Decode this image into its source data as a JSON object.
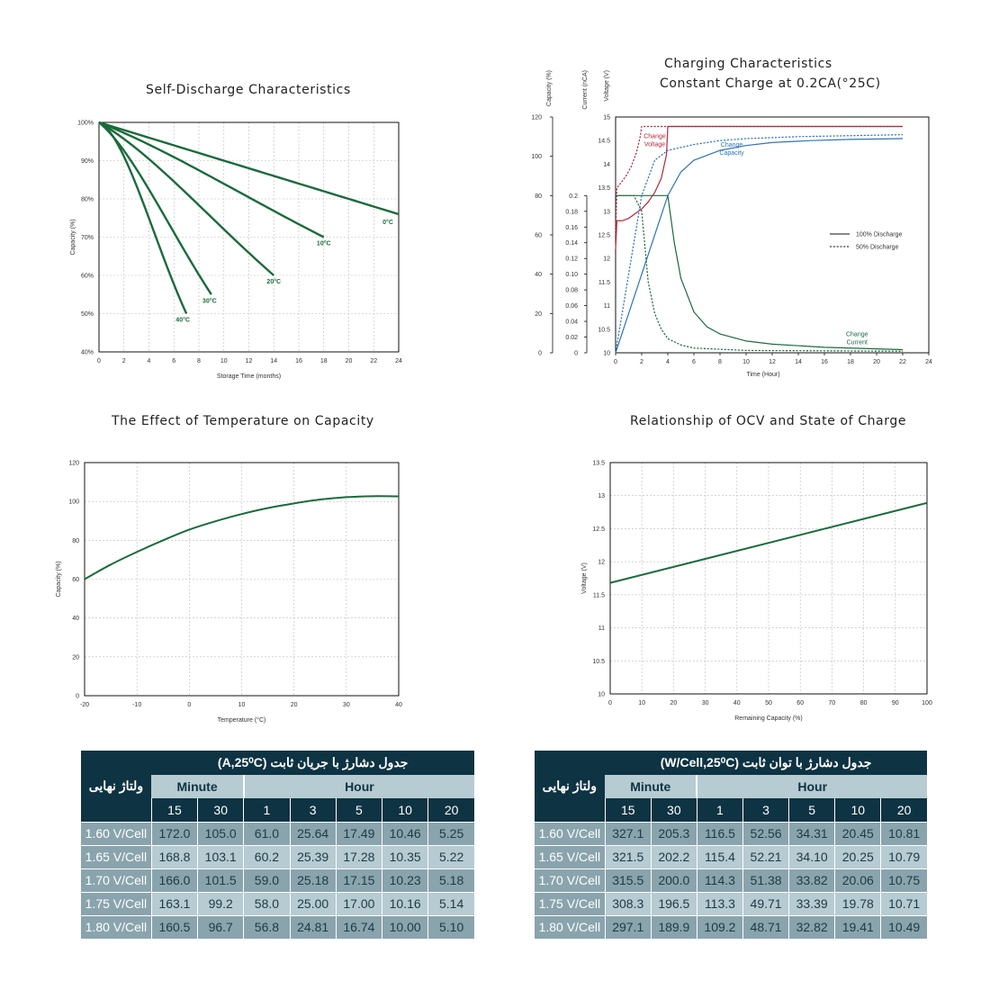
{
  "chart_data": [
    {
      "type": "line",
      "title": "Self-Discharge Characteristics",
      "xlabel": "Storage Time (months)",
      "ylabel": "Capacity (%)",
      "xlim": [
        0,
        24
      ],
      "ylim": [
        40,
        100
      ],
      "xticks": [
        0,
        2,
        4,
        6,
        8,
        10,
        12,
        14,
        16,
        18,
        20,
        22,
        24
      ],
      "yticks": [
        "40%",
        "50%",
        "60%",
        "70%",
        "80%",
        "90%",
        "100%"
      ],
      "ytick_values": [
        40,
        50,
        60,
        70,
        80,
        90,
        100
      ],
      "grid": true,
      "color": "#1a6b3c",
      "series": [
        {
          "name": "0°C",
          "x": [
            0,
            24
          ],
          "y": [
            100,
            76
          ],
          "curve": 0
        },
        {
          "name": "10°C",
          "x": [
            0,
            18
          ],
          "y": [
            100,
            70
          ],
          "curve": 0.04
        },
        {
          "name": "20°C",
          "x": [
            0,
            14
          ],
          "y": [
            100,
            60
          ],
          "curve": 0.06
        },
        {
          "name": "30°C",
          "x": [
            0,
            9
          ],
          "y": [
            100,
            55
          ],
          "curve": 0.08
        },
        {
          "name": "40°C",
          "x": [
            0,
            7
          ],
          "y": [
            100,
            50
          ],
          "curve": 0.14
        }
      ]
    },
    {
      "type": "line",
      "title": [
        "Charging Characteristics",
        "Constant Charge at 0.2CA(°25C)"
      ],
      "xlabel": "Time (Hour)",
      "ylabels": [
        "Capacity (%)",
        "Current (nCA)",
        "Voltage (V)"
      ],
      "xlim": [
        0,
        24
      ],
      "xticks": [
        0,
        2,
        4,
        6,
        8,
        10,
        12,
        14,
        16,
        18,
        20,
        22,
        24
      ],
      "capacity_ticks": [
        0,
        20,
        40,
        60,
        80,
        100,
        120
      ],
      "current_ticks": [
        "0",
        "0.02",
        "0.04",
        "0.06",
        "0.08",
        "0.10",
        "0.12",
        "0.14",
        "0.16",
        "0.18",
        "0.2"
      ],
      "voltage_ticks": [
        "10",
        "10.5",
        "11",
        "11.5",
        "12",
        "12.5",
        "13",
        "13.5",
        "14",
        "14.5",
        "15"
      ],
      "legend": [
        "100% Discharge",
        "50% Discharge"
      ],
      "annotations": [
        "Change\nVoltage",
        "Change\nCapacity",
        "Change\nCurrent"
      ],
      "colors": {
        "voltage": "#b22a3a",
        "capacity": "#2d73b8",
        "current": "#1a6b3c"
      },
      "series": [
        {
          "name": "Change Voltage",
          "style": "solid",
          "x": [
            0,
            0.1,
            0.5,
            1,
            1.5,
            2,
            2.5,
            3,
            3.5,
            3.9,
            4,
            6,
            10,
            16,
            22
          ],
          "y": [
            12.2,
            12.8,
            12.8,
            12.85,
            12.95,
            13.05,
            13.2,
            13.4,
            13.7,
            14.2,
            14.8,
            14.8,
            14.8,
            14.8,
            14.8
          ]
        },
        {
          "name": "Change Voltage 50%",
          "style": "dashed",
          "x": [
            0,
            0.1,
            0.4,
            0.8,
            1.2,
            1.6,
            1.9,
            2,
            4,
            10,
            16,
            22
          ],
          "y": [
            12.5,
            13.5,
            13.6,
            13.75,
            13.95,
            14.25,
            14.6,
            14.8,
            14.8,
            14.8,
            14.8,
            14.8
          ]
        },
        {
          "name": "Change Capacity",
          "style": "solid",
          "x": [
            0,
            4,
            5,
            6,
            8,
            10,
            12,
            15,
            18,
            22
          ],
          "y_capacity": [
            0,
            80,
            92,
            98,
            103,
            105.5,
            107,
            108,
            108.6,
            109
          ]
        },
        {
          "name": "Change Capacity 50%",
          "style": "dashed",
          "x": [
            0,
            2,
            3,
            4,
            6,
            8,
            10,
            14,
            18,
            22
          ],
          "y_capacity": [
            0,
            80,
            98,
            103,
            106,
            108,
            109,
            110,
            110.5,
            111
          ]
        },
        {
          "name": "Change Current",
          "style": "solid",
          "x": [
            0,
            4,
            4.5,
            5,
            6,
            7,
            8,
            10,
            12,
            16,
            22
          ],
          "y_current": [
            0.2,
            0.2,
            0.14,
            0.095,
            0.052,
            0.033,
            0.024,
            0.015,
            0.011,
            0.007,
            0.004
          ]
        },
        {
          "name": "Change Current 50%",
          "style": "dashed",
          "x": [
            0,
            1.4,
            2,
            2.5,
            3,
            3.5,
            4,
            5,
            6,
            10,
            22
          ],
          "y_current": [
            0.2,
            0.2,
            0.18,
            0.09,
            0.05,
            0.03,
            0.018,
            0.01,
            0.006,
            0.003,
            0.002
          ]
        }
      ]
    },
    {
      "type": "line",
      "title": "The Effect of Temperature on Capacity",
      "xlabel": "Temperature (°C)",
      "ylabel": "Capacity (%)",
      "xlim": [
        -20,
        40
      ],
      "ylim": [
        0,
        120
      ],
      "xticks": [
        -20,
        -10,
        0,
        10,
        20,
        30,
        40
      ],
      "yticks": [
        0,
        20,
        40,
        60,
        80,
        100,
        120
      ],
      "grid": true,
      "color": "#1a6b3c",
      "series": [
        {
          "x": [
            -20,
            -15,
            -10,
            -5,
            0,
            5,
            10,
            15,
            20,
            25,
            30,
            35,
            40
          ],
          "y": [
            60,
            67.5,
            74,
            80,
            85.5,
            89.8,
            93.5,
            96.6,
            99,
            101,
            102.2,
            102.7,
            102.6
          ]
        }
      ]
    },
    {
      "type": "line",
      "title": "Relationship of OCV and State of Charge",
      "xlabel": "Remaining Capacity (%)",
      "ylabel": "Voltage (V)",
      "xlim": [
        0,
        100
      ],
      "ylim": [
        10,
        13.5
      ],
      "xticks": [
        0,
        10,
        20,
        30,
        40,
        50,
        60,
        70,
        80,
        90,
        100
      ],
      "yticks": [
        "10",
        "10.5",
        "11",
        "11.5",
        "12",
        "12.5",
        "13",
        "13.5"
      ],
      "ytick_values": [
        10,
        10.5,
        11,
        11.5,
        12,
        12.5,
        13,
        13.5
      ],
      "grid": true,
      "color": "#1a6b3c",
      "series": [
        {
          "x": [
            0,
            100
          ],
          "y": [
            11.68,
            12.89
          ]
        }
      ]
    }
  ],
  "tables": [
    {
      "title": "جدول دشارژ با جریان ثابت  (A,25⁰C)",
      "corner": "ولتاژ نهایی",
      "group_minute": "Minute",
      "group_hour": "Hour",
      "columns": [
        "15",
        "30",
        "1",
        "3",
        "5",
        "10",
        "20"
      ],
      "rows": [
        {
          "label": "1.60 V/Cell",
          "values": [
            "172.0",
            "105.0",
            "61.0",
            "25.64",
            "17.49",
            "10.46",
            "5.25"
          ]
        },
        {
          "label": "1.65 V/Cell",
          "values": [
            "168.8",
            "103.1",
            "60.2",
            "25.39",
            "17.28",
            "10.35",
            "5.22"
          ]
        },
        {
          "label": "1.70 V/Cell",
          "values": [
            "166.0",
            "101.5",
            "59.0",
            "25.18",
            "17.15",
            "10.23",
            "5.18"
          ]
        },
        {
          "label": "1.75 V/Cell",
          "values": [
            "163.1",
            "99.2",
            "58.0",
            "25.00",
            "17.00",
            "10.16",
            "5.14"
          ]
        },
        {
          "label": "1.80 V/Cell",
          "values": [
            "160.5",
            "96.7",
            "56.8",
            "24.81",
            "16.74",
            "10.00",
            "5.10"
          ]
        }
      ]
    },
    {
      "title": "جدول دشارژ با توان ثابت  (W/Cell,25⁰C)",
      "corner": "ولتاژ نهایی",
      "group_minute": "Minute",
      "group_hour": "Hour",
      "columns": [
        "15",
        "30",
        "1",
        "3",
        "5",
        "10",
        "20"
      ],
      "rows": [
        {
          "label": "1.60 V/Cell",
          "values": [
            "327.1",
            "205.3",
            "116.5",
            "52.56",
            "34.31",
            "20.45",
            "10.81"
          ]
        },
        {
          "label": "1.65 V/Cell",
          "values": [
            "321.5",
            "202.2",
            "115.4",
            "52.21",
            "34.10",
            "20.25",
            "10.79"
          ]
        },
        {
          "label": "1.70 V/Cell",
          "values": [
            "315.5",
            "200.0",
            "114.3",
            "51.38",
            "33.82",
            "20.06",
            "10.75"
          ]
        },
        {
          "label": "1.75 V/Cell",
          "values": [
            "308.3",
            "196.5",
            "113.3",
            "49.71",
            "33.39",
            "19.78",
            "10.71"
          ]
        },
        {
          "label": "1.80 V/Cell",
          "values": [
            "297.1",
            "189.9",
            "109.2",
            "48.71",
            "32.82",
            "19.41",
            "10.49"
          ]
        }
      ]
    }
  ]
}
